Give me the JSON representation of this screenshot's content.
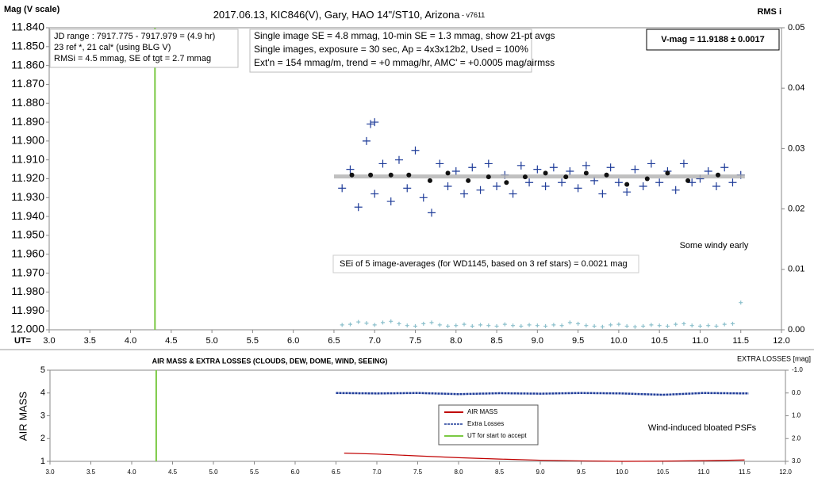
{
  "chart_data": [
    {
      "type": "scatter",
      "title": "2017.06.13,  KIC846(V),  Gary,  HAO  14\"/ST10,  Arizona",
      "subtitle": " - v7611",
      "y_label": "Mag (V scale)",
      "y2_label": "RMS i",
      "x_label": "UT=",
      "xlim": [
        3,
        12
      ],
      "xticks": [
        {
          "value": 3,
          "label": "3.0"
        },
        3.5,
        {
          "value": 4,
          "label": "4.0"
        },
        4.5,
        {
          "value": 5,
          "label": "5.0"
        },
        5.5,
        {
          "value": 6,
          "label": "6.0"
        },
        6.5,
        {
          "value": 7,
          "label": "7.0"
        },
        7.5,
        {
          "value": 8,
          "label": "8.0"
        },
        8.5,
        {
          "value": 9,
          "label": "9.0"
        },
        9.5,
        {
          "value": 10,
          "label": "10.0"
        },
        10.5,
        {
          "value": 11,
          "label": "11.0"
        },
        11.5,
        {
          "value": 12,
          "label": "12.0"
        }
      ],
      "ylim": [
        11.84,
        12.0
      ],
      "y_inverted": true,
      "yticks": [
        {
          "value": 11.84,
          "label": "11.840"
        },
        {
          "value": 11.85,
          "label": "11.850"
        },
        {
          "value": 11.86,
          "label": "11.860"
        },
        {
          "value": 11.87,
          "label": "11.870"
        },
        {
          "value": 11.88,
          "label": "11.880"
        },
        {
          "value": 11.89,
          "label": "11.890"
        },
        {
          "value": 11.9,
          "label": "11.900"
        },
        {
          "value": 11.91,
          "label": "11.910"
        },
        {
          "value": 11.92,
          "label": "11.920"
        },
        {
          "value": 11.93,
          "label": "11.930"
        },
        {
          "value": 11.94,
          "label": "11.940"
        },
        {
          "value": 11.95,
          "label": "11.950"
        },
        {
          "value": 11.96,
          "label": "11.960"
        },
        {
          "value": 11.97,
          "label": "11.970"
        },
        {
          "value": 11.98,
          "label": "11.980"
        },
        {
          "value": 11.99,
          "label": "11.990"
        },
        {
          "value": 12.0,
          "label": "12.000"
        }
      ],
      "y2lim": [
        0,
        0.05
      ],
      "y2ticks": [
        {
          "value": 0,
          "label": "0.00"
        },
        0.01,
        0.02,
        0.03,
        0.04,
        0.05
      ],
      "series": [
        {
          "marker": "plus",
          "color": "#1f3c99",
          "x": [
            6.6,
            6.7,
            6.8,
            6.9,
            6.95,
            7.0,
            7.0,
            7.1,
            7.2,
            7.3,
            7.4,
            7.5,
            7.6,
            7.7,
            7.8,
            7.9,
            8.0,
            8.1,
            8.2,
            8.3,
            8.4,
            8.5,
            8.6,
            8.7,
            8.8,
            8.9,
            9.0,
            9.1,
            9.2,
            9.3,
            9.4,
            9.5,
            9.6,
            9.7,
            9.8,
            9.9,
            10.0,
            10.1,
            10.2,
            10.3,
            10.4,
            10.5,
            10.6,
            10.7,
            10.8,
            10.9,
            11.0,
            11.1,
            11.2,
            11.3,
            11.4,
            11.5
          ],
          "values": [
            11.925,
            11.915,
            11.935,
            11.9,
            11.891,
            11.89,
            11.928,
            11.912,
            11.932,
            11.91,
            11.925,
            11.905,
            11.93,
            11.938,
            11.912,
            11.924,
            11.916,
            11.928,
            11.914,
            11.926,
            11.912,
            11.924,
            11.918,
            11.928,
            11.913,
            11.922,
            11.915,
            11.924,
            11.914,
            11.922,
            11.916,
            11.925,
            11.913,
            11.921,
            11.928,
            11.914,
            11.922,
            11.927,
            11.915,
            11.924,
            11.912,
            11.922,
            11.916,
            11.926,
            11.912,
            11.922,
            11.92,
            11.916,
            11.924,
            11.914,
            11.922,
            11.918
          ]
        },
        {
          "marker": "line",
          "color": "#b0b0b0",
          "x": [
            6.5,
            11.55
          ],
          "values": [
            11.9188,
            11.9188
          ]
        },
        {
          "marker": "dot",
          "color": "#111111",
          "x": [
            6.72,
            6.95,
            7.2,
            7.42,
            7.68,
            7.9,
            8.15,
            8.4,
            8.62,
            8.85,
            9.1,
            9.35,
            9.6,
            9.85,
            10.1,
            10.35,
            10.6,
            10.85,
            11.22
          ],
          "values": [
            11.918,
            11.918,
            11.918,
            11.918,
            11.921,
            11.917,
            11.921,
            11.919,
            11.922,
            11.919,
            11.917,
            11.919,
            11.917,
            11.918,
            11.923,
            11.92,
            11.917,
            11.921,
            11.918
          ]
        },
        {
          "marker": "small",
          "color": "#8cc0cc",
          "axis": "y2",
          "x": [
            6.6,
            6.7,
            6.8,
            6.9,
            7.0,
            7.1,
            7.2,
            7.3,
            7.4,
            7.5,
            7.6,
            7.7,
            7.8,
            7.9,
            8.0,
            8.1,
            8.2,
            8.3,
            8.4,
            8.5,
            8.6,
            8.7,
            8.8,
            8.9,
            9.0,
            9.1,
            9.2,
            9.3,
            9.4,
            9.5,
            9.6,
            9.7,
            9.8,
            9.9,
            10.0,
            10.1,
            10.2,
            10.3,
            10.4,
            10.5,
            10.6,
            10.7,
            10.8,
            10.9,
            11.0,
            11.1,
            11.2,
            11.3,
            11.4,
            11.5
          ],
          "values": [
            0.0008,
            0.0009,
            0.0013,
            0.0011,
            0.0008,
            0.0012,
            0.0014,
            0.001,
            0.0007,
            0.0006,
            0.001,
            0.0012,
            0.0008,
            0.0006,
            0.0007,
            0.0009,
            0.0006,
            0.0008,
            0.0007,
            0.0006,
            0.0009,
            0.0007,
            0.0006,
            0.0008,
            0.0007,
            0.0006,
            0.0008,
            0.0007,
            0.0012,
            0.001,
            0.0007,
            0.0006,
            0.0005,
            0.0008,
            0.0009,
            0.0006,
            0.0005,
            0.0006,
            0.0008,
            0.0007,
            0.0006,
            0.0009,
            0.001,
            0.0007,
            0.0006,
            0.0007,
            0.0006,
            0.0009,
            0.001,
            0.0045
          ]
        }
      ],
      "vlines": [
        {
          "x": 4.3,
          "color": "#7ac943"
        }
      ],
      "info_boxes": [
        [
          "JD range : 7917.775 - 7917.979 = (4.9 hr)",
          "23 ref *, 21 cal* (using BLG V)",
          "RMSi = 4.5 mmag, SE of tgt = 2.7 mmag"
        ],
        [
          "Single image SE = 4.8 mmag, 10-min SE = 1.3 mmag, show 21-pt avgs",
          "Single images, exposure = 30 sec, Ap = 4x3x12b2, Used = 100%",
          "Ext'n = 154 mmag/m, trend = +0 mmag/hr, AMC' = +0.0005 mag/airmss"
        ],
        [
          "V-mag = 11.9188 ± 0.0017"
        ]
      ],
      "annotations": [
        "Some windy early",
        "SEi of 5 image-averages (for WD1145, based on 3 ref stars) = 0.0021 mag"
      ]
    },
    {
      "type": "line",
      "title": "AIR MASS & EXTRA LOSSES (CLOUDS, DEW, DOME, WIND, SEEING)",
      "y_label": "AIR MASS",
      "y2_label": "EXTRA LOSSES [mag]",
      "xlim": [
        3,
        12
      ],
      "xticks": [
        {
          "value": 3,
          "label": "3.0"
        },
        3.5,
        {
          "value": 4,
          "label": "4.0"
        },
        4.5,
        {
          "value": 5,
          "label": "5.0"
        },
        5.5,
        {
          "value": 6,
          "label": "6.0"
        },
        6.5,
        {
          "value": 7,
          "label": "7.0"
        },
        7.5,
        {
          "value": 8,
          "label": "8.0"
        },
        8.5,
        {
          "value": 9,
          "label": "9.0"
        },
        9.5,
        {
          "value": 10,
          "label": "10.0"
        },
        10.5,
        {
          "value": 11,
          "label": "11.0"
        },
        11.5,
        {
          "value": 12,
          "label": "12.0"
        }
      ],
      "ylim": [
        1,
        5
      ],
      "yticks": [
        1,
        2,
        3,
        4,
        5
      ],
      "y2lim": [
        -1,
        3
      ],
      "y2_inverted": true,
      "y2ticks": [
        {
          "value": -1,
          "label": "-1.0"
        },
        {
          "value": 0,
          "label": "0.0"
        },
        {
          "value": 1,
          "label": "1.0"
        },
        {
          "value": 2,
          "label": "2.0"
        },
        {
          "value": 3,
          "label": "3.0"
        }
      ],
      "legend": "center",
      "series": [
        {
          "name": "AIR MASS",
          "marker": "line",
          "color": "#c00000",
          "x": [
            6.6,
            7.0,
            7.5,
            8.0,
            8.5,
            9.0,
            9.5,
            10.0,
            10.5,
            11.0,
            11.5
          ],
          "values": [
            1.36,
            1.32,
            1.24,
            1.16,
            1.1,
            1.05,
            1.02,
            1.0,
            1.01,
            1.03,
            1.06
          ]
        },
        {
          "name": "Extra Losses",
          "marker": "line",
          "color": "#1f3c99",
          "axis": "y2",
          "x": [
            6.5,
            7.0,
            7.5,
            8.0,
            8.5,
            9.0,
            9.5,
            10.0,
            10.5,
            11.0,
            11.55
          ],
          "values": [
            0.0,
            0.02,
            0.0,
            0.05,
            0.01,
            0.03,
            0.0,
            0.02,
            0.08,
            0.0,
            0.02
          ]
        }
      ],
      "vlines": [
        {
          "name": "UT for start to accept",
          "x": 4.3,
          "color": "#7ac943"
        }
      ],
      "annotations": [
        "Wind-induced bloated PSFs"
      ]
    }
  ]
}
